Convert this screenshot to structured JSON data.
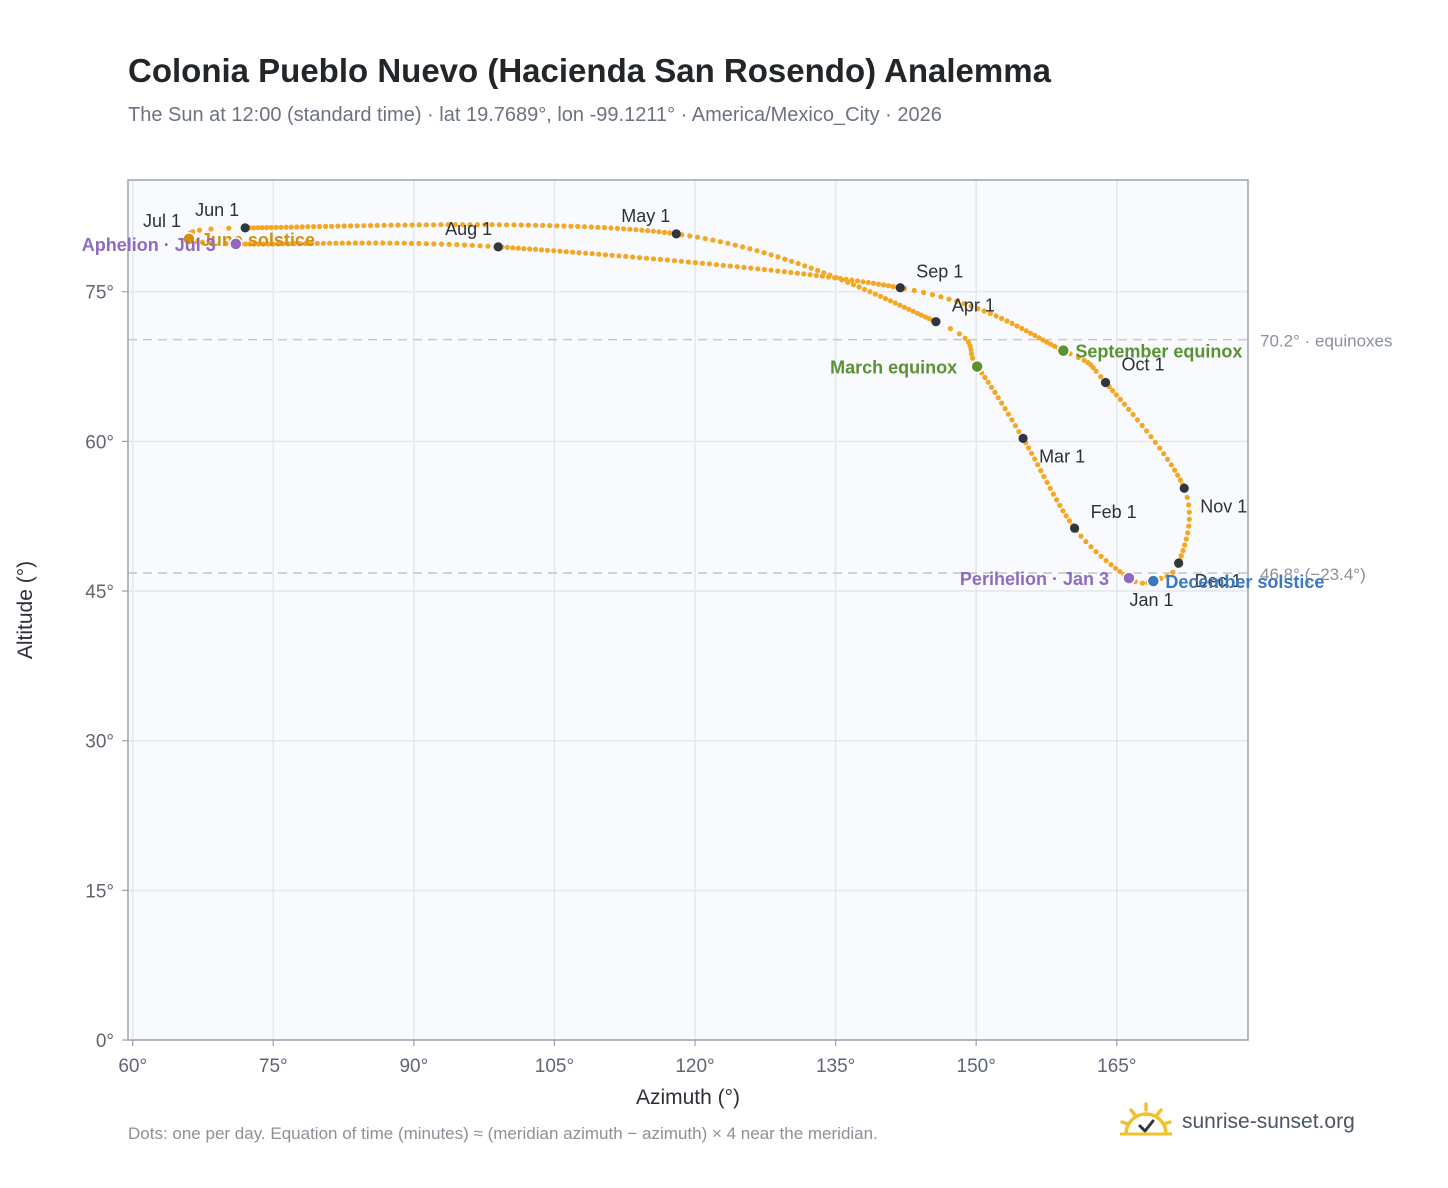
{
  "header": {
    "title": "Colonia Pueblo Nuevo (Hacienda San Rosendo) Analemma",
    "subtitle": "The Sun at 12:00 (standard time) · lat 19.7689°, lon -99.1211° · America/Mexico_City · 2026"
  },
  "footer": {
    "note": "Dots: one per day. Equation of time (minutes) ≈ (meridian azimuth − azimuth) × 4 near the meridian.",
    "brand": "sunrise-sunset.org",
    "brand_icon": "sun-logo-icon"
  },
  "colors": {
    "curve": "#f5a623",
    "month_marker": "#2f3640",
    "equinox": "#5a9231",
    "december_solstice": "#3b78c2",
    "june_solstice": "#d4900f",
    "apsis": "#8e6bbf",
    "reference_line": "#c4c9d0",
    "plot_background": "#f8fafd",
    "grid": "#e3e8ee"
  },
  "chart_data": {
    "type": "scatter",
    "title": "Colonia Pueblo Nuevo (Hacienda San Rosendo) Analemma",
    "xlabel": "Azimuth (°)",
    "ylabel": "Altitude (°)",
    "xlim": [
      59.5,
      179
    ],
    "ylim": [
      0,
      86.2
    ],
    "grid": true,
    "x_ticks": [
      60,
      75,
      90,
      105,
      120,
      135,
      150,
      165
    ],
    "x_tick_labels": [
      "60°",
      "75°",
      "90°",
      "105°",
      "120°",
      "135°",
      "150°",
      "165°"
    ],
    "y_ticks": [
      0,
      15,
      30,
      45,
      60,
      75
    ],
    "y_tick_labels": [
      "0°",
      "15°",
      "30°",
      "45°",
      "60°",
      "75°"
    ],
    "analemma_keypoints": [
      {
        "date": "Jan 1",
        "azimuth": 168.7,
        "altitude": 45.9
      },
      {
        "date": "Jan 3",
        "azimuth": 166.3,
        "altitude": 46.3
      },
      {
        "date": "Feb 1",
        "azimuth": 160.5,
        "altitude": 51.3
      },
      {
        "date": "Mar 1",
        "azimuth": 155.0,
        "altitude": 60.3
      },
      {
        "date": "Mar 20",
        "azimuth": 150.1,
        "altitude": 67.5
      },
      {
        "date": "Apr 1",
        "azimuth": 145.7,
        "altitude": 72.0
      },
      {
        "date": "May 1",
        "azimuth": 118.0,
        "altitude": 80.8
      },
      {
        "date": "Jun 1",
        "azimuth": 72.0,
        "altitude": 81.4
      },
      {
        "date": "Jun 21",
        "azimuth": 66.0,
        "altitude": 80.3
      },
      {
        "date": "Jul 1",
        "azimuth": 65.8,
        "altitude": 80.3
      },
      {
        "date": "Jul 3",
        "azimuth": 71.0,
        "altitude": 79.8
      },
      {
        "date": "Aug 1",
        "azimuth": 99.0,
        "altitude": 79.5
      },
      {
        "date": "Sep 1",
        "azimuth": 141.9,
        "altitude": 75.4
      },
      {
        "date": "Sep 22",
        "azimuth": 159.3,
        "altitude": 69.1
      },
      {
        "date": "Oct 1",
        "azimuth": 163.8,
        "altitude": 65.9
      },
      {
        "date": "Nov 1",
        "azimuth": 172.2,
        "altitude": 55.3
      },
      {
        "date": "Dec 1",
        "azimuth": 171.6,
        "altitude": 47.8
      },
      {
        "date": "Dec 21",
        "azimuth": 168.9,
        "altitude": 46.0
      },
      {
        "date": "Jan 1",
        "azimuth": 168.7,
        "altitude": 45.9
      }
    ],
    "month_markers": [
      {
        "label": "Jan 1",
        "azimuth": 168.7,
        "altitude": 45.9,
        "label_pos": "below"
      },
      {
        "label": "Feb 1",
        "azimuth": 160.5,
        "altitude": 51.3,
        "label_pos": "above-right"
      },
      {
        "label": "Mar 1",
        "azimuth": 155.0,
        "altitude": 60.3,
        "label_pos": "below-right"
      },
      {
        "label": "Apr 1",
        "azimuth": 145.7,
        "altitude": 72.0,
        "label_pos": "above-right"
      },
      {
        "label": "May 1",
        "azimuth": 118.0,
        "altitude": 80.8,
        "label_pos": "above-left"
      },
      {
        "label": "Jun 1",
        "azimuth": 72.0,
        "altitude": 81.4,
        "label_pos": "above-left"
      },
      {
        "label": "Jul 1",
        "azimuth": 65.8,
        "altitude": 80.3,
        "label_pos": "above-left"
      },
      {
        "label": "Aug 1",
        "azimuth": 99.0,
        "altitude": 79.5,
        "label_pos": "above-left"
      },
      {
        "label": "Sep 1",
        "azimuth": 141.9,
        "altitude": 75.4,
        "label_pos": "above-right"
      },
      {
        "label": "Oct 1",
        "azimuth": 163.8,
        "altitude": 65.9,
        "label_pos": "right"
      },
      {
        "label": "Nov 1",
        "azimuth": 172.2,
        "altitude": 55.3,
        "label_pos": "below-right"
      },
      {
        "label": "Dec 1",
        "azimuth": 171.6,
        "altitude": 47.8,
        "label_pos": "below-right"
      }
    ],
    "events": [
      {
        "label": "March equinox",
        "azimuth": 150.1,
        "altitude": 67.5,
        "color": "#5a9231",
        "label_pos": "left"
      },
      {
        "label": "September equinox",
        "azimuth": 159.3,
        "altitude": 69.1,
        "color": "#5a9231",
        "label_pos": "right"
      },
      {
        "label": "June solstice",
        "azimuth": 66.0,
        "altitude": 80.3,
        "color": "#d4900f",
        "label_pos": "right"
      },
      {
        "label": "December solstice",
        "azimuth": 168.9,
        "altitude": 46.0,
        "color": "#3b78c2",
        "label_pos": "right"
      },
      {
        "label": "Perihelion · Jan 3",
        "azimuth": 166.3,
        "altitude": 46.3,
        "color": "#8e6bbf",
        "label_pos": "left"
      },
      {
        "label": "Aphelion · Jul 3",
        "azimuth": 71.0,
        "altitude": 79.8,
        "color": "#8e6bbf",
        "label_pos": "left-far"
      }
    ],
    "reference_lines": [
      {
        "altitude": 70.2,
        "label": "70.2° · equinoxes"
      },
      {
        "altitude": 46.8,
        "label": "46.8° (−23.4°)"
      }
    ]
  }
}
